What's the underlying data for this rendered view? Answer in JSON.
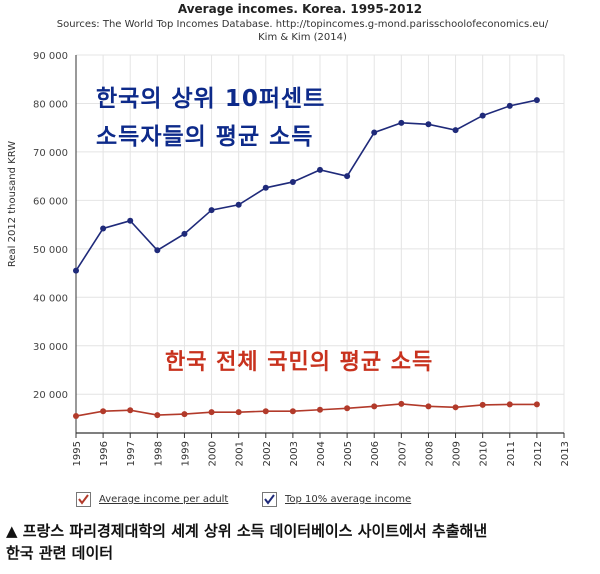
{
  "header": {
    "title": "Average incomes. Korea. 1995-2012",
    "source_line1": "Sources: The World Top Incomes Database. http://topincomes.g-mond.parisschoolofeconomics.eu/",
    "source_line2": "Kim & Kim (2014)"
  },
  "overlay_text": {
    "top_line1": "한국의 상위 10퍼센트",
    "top_line2": "소득자들의 평균 소득",
    "bottom": "한국 전체 국민의 평균 소득"
  },
  "legend": {
    "adult_label": "Average income per adult",
    "top10_label": "Top 10% average income"
  },
  "caption": {
    "line1": "▲ 프랑스 파리경제대학의 세계 상위 소득 데이터베이스 사이트에서 추출해낸",
    "line2": "한국 관련 데이터"
  },
  "chart_data": {
    "type": "line",
    "title": "Average incomes. Korea. 1995-2012",
    "ylabel": "Real 2012 thousand KRW",
    "xlabel": "",
    "x": [
      1995,
      1996,
      1997,
      1998,
      1999,
      2000,
      2001,
      2002,
      2003,
      2004,
      2005,
      2006,
      2007,
      2008,
      2009,
      2010,
      2011,
      2012
    ],
    "x_ticks": [
      "1995",
      "1996",
      "1997",
      "1998",
      "1999",
      "2000",
      "2001",
      "2002",
      "2003",
      "2004",
      "2005",
      "2006",
      "2007",
      "2008",
      "2009",
      "2010",
      "2011",
      "2012",
      "2013"
    ],
    "y_ticks": [
      "20 000",
      "30 000",
      "40 000",
      "50 000",
      "60 000",
      "70 000",
      "80 000",
      "90 000"
    ],
    "xlim": [
      1995,
      2013
    ],
    "ylim": [
      12000,
      90000
    ],
    "grid": true,
    "legend_position": "bottom",
    "series": [
      {
        "name": "Top 10% average income",
        "color": "#1f2a7a",
        "values": [
          45500,
          54200,
          55800,
          49700,
          53100,
          58000,
          59100,
          62600,
          63800,
          66300,
          65000,
          74000,
          76000,
          75700,
          74500,
          77500,
          79500,
          80700
        ]
      },
      {
        "name": "Average income per adult",
        "color": "#b23a2a",
        "values": [
          15500,
          16500,
          16700,
          15700,
          15900,
          16300,
          16300,
          16500,
          16500,
          16800,
          17100,
          17500,
          18000,
          17500,
          17300,
          17800,
          17900,
          17900
        ]
      }
    ]
  },
  "colors": {
    "top_series": "#1f2a7a",
    "adult_series": "#b23a2a",
    "overlay_blue": "#0d2a8a",
    "overlay_red": "#c8321e",
    "grid": "#e4e4e4"
  }
}
